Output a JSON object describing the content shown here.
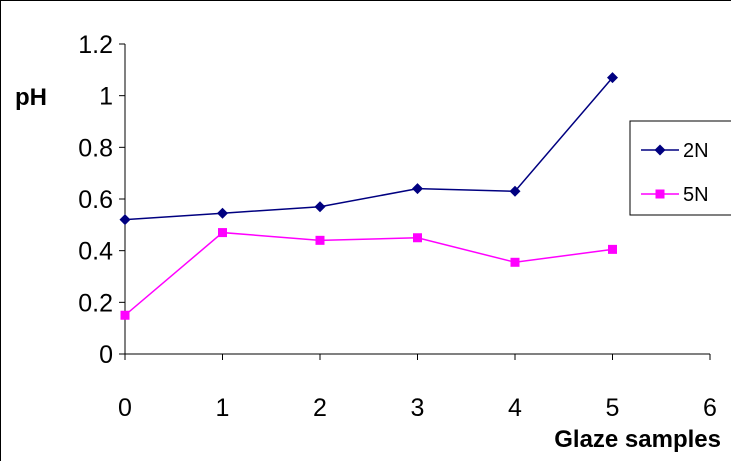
{
  "chart_data": {
    "type": "line",
    "title": "",
    "xlabel": "Glaze samples",
    "ylabel": "pH",
    "xlim": [
      0,
      6
    ],
    "ylim": [
      0,
      1.2
    ],
    "x_ticks": [
      "0",
      "1",
      "2",
      "3",
      "4",
      "5",
      "6"
    ],
    "y_ticks": [
      "0",
      "0.2",
      "0.4",
      "0.6",
      "0.8",
      "1",
      "1.2"
    ],
    "grid": false,
    "legend_position": "right",
    "series": [
      {
        "name": "2N",
        "color": "#000080",
        "marker": "diamond",
        "x": [
          0,
          1,
          2,
          3,
          4,
          5
        ],
        "values": [
          0.52,
          0.545,
          0.57,
          0.64,
          0.63,
          1.07
        ]
      },
      {
        "name": "5N",
        "color": "#ff00ff",
        "marker": "square",
        "x": [
          0,
          1,
          2,
          3,
          4,
          5
        ],
        "values": [
          0.15,
          0.47,
          0.44,
          0.45,
          0.355,
          0.405
        ]
      }
    ]
  }
}
